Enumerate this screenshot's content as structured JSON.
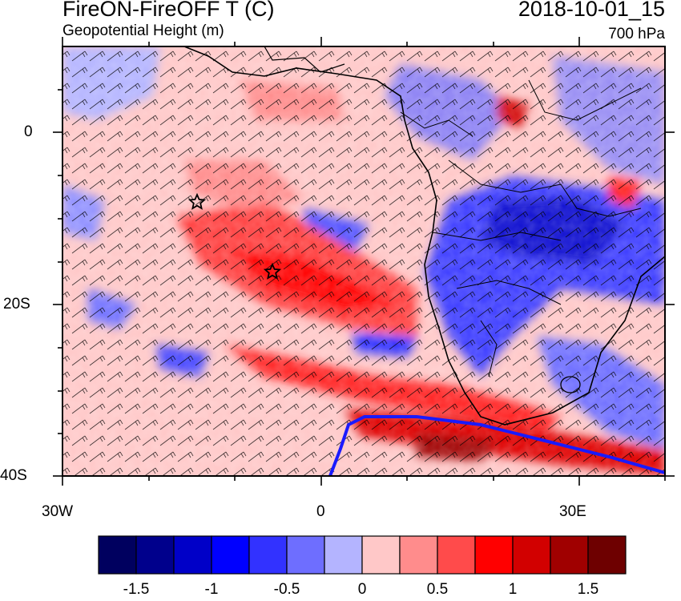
{
  "title": {
    "main": "FireON-FireOFF T (C)",
    "sub": "Geopotential Height (m)",
    "date": "2018-10-01_15",
    "level": "700 hPa"
  },
  "map": {
    "lon_labels": [
      "30W",
      "0",
      "30E"
    ],
    "lat_labels": [
      "0",
      "20S",
      "40S"
    ],
    "markers": [
      "star-marker",
      "star-marker"
    ]
  },
  "colorbar": {
    "labels": [
      "-1.5",
      "-1",
      "-0.5",
      "0",
      "0.5",
      "1",
      "1.5"
    ],
    "colors": [
      "#00005f",
      "#00008c",
      "#0000c8",
      "#0000ff",
      "#3232ff",
      "#6e6eff",
      "#b4b4ff",
      "#ffc8c8",
      "#ff8c8c",
      "#ff4b4b",
      "#ff0000",
      "#d20000",
      "#a00000",
      "#6e0000"
    ]
  },
  "colors": {
    "warm": "#ff4040",
    "cool": "#4040ff",
    "contour": "#1a1aff",
    "coast": "#000000"
  }
}
